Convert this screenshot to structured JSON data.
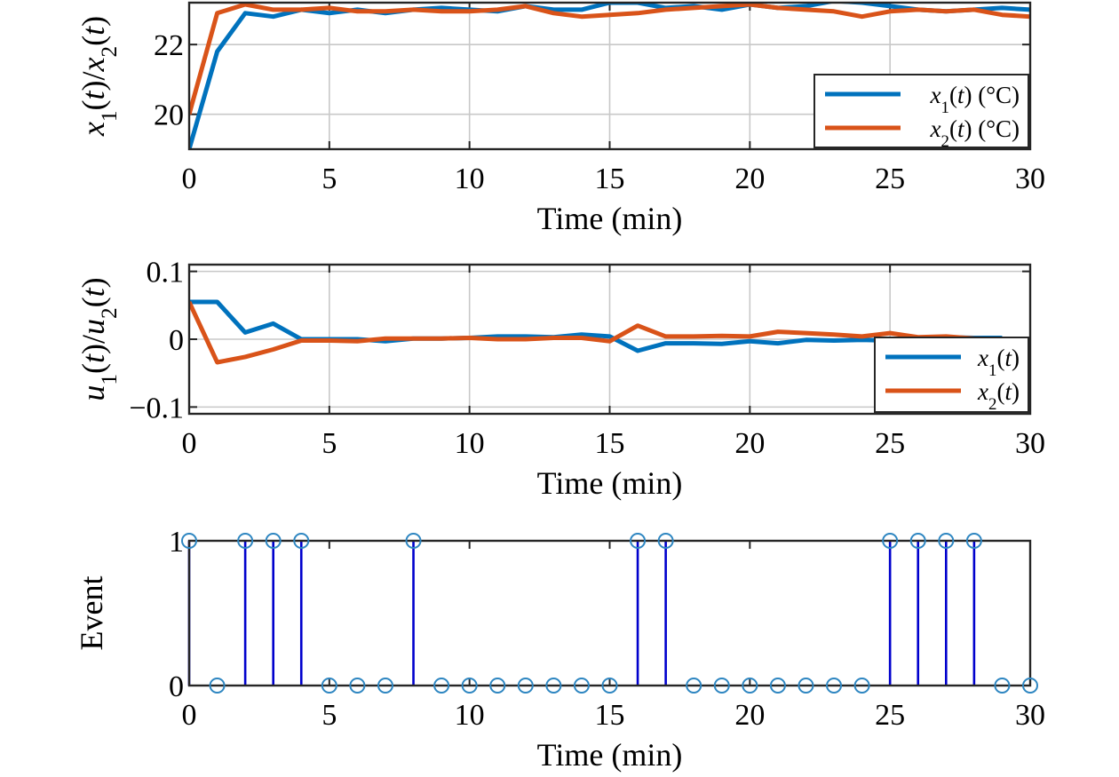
{
  "chart_data": [
    {
      "type": "line",
      "ylabel": "x1(t)/x2(t)",
      "ylabel_parts": [
        "x",
        "1",
        "(",
        "t",
        ")/",
        "x",
        "2",
        "(",
        "t",
        ")"
      ],
      "xlabel": "Time (min)",
      "xlim": [
        0,
        30
      ],
      "ylim": [
        19,
        23.2
      ],
      "xticks": [
        0,
        5,
        10,
        15,
        20,
        25,
        30
      ],
      "xtick_labels": [
        "0",
        "5",
        "10",
        "15",
        "20",
        "25",
        "30"
      ],
      "yticks": [
        20,
        22
      ],
      "ytick_labels": [
        "20",
        "22"
      ],
      "grid": true,
      "legend_position": "bottom-right",
      "x": [
        0,
        1,
        2,
        3,
        4,
        5,
        6,
        7,
        8,
        9,
        10,
        11,
        12,
        13,
        14,
        15,
        16,
        17,
        18,
        19,
        20,
        21,
        22,
        23,
        24,
        25,
        26,
        27,
        28,
        29,
        30
      ],
      "series": [
        {
          "name": "x1(t) (°C)",
          "legend_parts": [
            "x",
            "1",
            "(",
            "t",
            ") (°C)"
          ],
          "color": "#0072BD",
          "values": [
            19.0,
            21.8,
            22.9,
            22.8,
            23.0,
            22.9,
            23.0,
            22.9,
            23.0,
            23.05,
            23.0,
            22.95,
            23.1,
            23.0,
            23.0,
            23.2,
            23.2,
            23.05,
            23.1,
            23.0,
            23.15,
            23.05,
            23.1,
            23.25,
            23.2,
            23.1,
            23.0,
            22.95,
            23.0,
            23.05,
            23.0
          ]
        },
        {
          "name": "x2(t) (°C)",
          "legend_parts": [
            "x",
            "2",
            "(",
            "t",
            ") (°C)"
          ],
          "color": "#D95319",
          "values": [
            20.0,
            22.9,
            23.15,
            23.0,
            23.0,
            23.05,
            22.95,
            22.95,
            23.0,
            22.95,
            22.95,
            23.0,
            23.1,
            22.9,
            22.8,
            22.85,
            22.9,
            23.0,
            23.05,
            23.1,
            23.15,
            23.05,
            23.0,
            22.95,
            22.8,
            22.95,
            23.0,
            22.95,
            23.0,
            22.85,
            22.8
          ]
        }
      ]
    },
    {
      "type": "line",
      "ylabel": "u1(t)/u2(t)",
      "ylabel_parts": [
        "u",
        "1",
        "(",
        "t",
        ")/",
        "u",
        "2",
        "(",
        "t",
        ")"
      ],
      "xlabel": "Time (min)",
      "xlim": [
        0,
        30
      ],
      "ylim": [
        -0.11,
        0.11
      ],
      "xticks": [
        0,
        5,
        10,
        15,
        20,
        25,
        30
      ],
      "xtick_labels": [
        "0",
        "5",
        "10",
        "15",
        "20",
        "25",
        "30"
      ],
      "yticks": [
        0.1,
        0,
        -0.1
      ],
      "ytick_labels": [
        "0.1",
        "0",
        "−0.1"
      ],
      "grid": true,
      "legend_position": "bottom-right",
      "x": [
        0,
        1,
        2,
        3,
        4,
        5,
        6,
        7,
        8,
        9,
        10,
        11,
        12,
        13,
        14,
        15,
        16,
        17,
        18,
        19,
        20,
        21,
        22,
        23,
        24,
        25,
        26,
        27,
        28,
        29
      ],
      "series": [
        {
          "name": "x1(t)",
          "legend_parts": [
            "x",
            "1",
            "(",
            "t",
            ")"
          ],
          "color": "#0072BD",
          "values": [
            0.055,
            0.055,
            0.01,
            0.023,
            0.0,
            0.0,
            0.0,
            -0.003,
            0.001,
            0.001,
            0.002,
            0.004,
            0.004,
            0.003,
            0.007,
            0.004,
            -0.017,
            -0.006,
            -0.006,
            -0.007,
            -0.003,
            -0.006,
            -0.001,
            -0.002,
            -0.001,
            -0.002,
            0.001,
            0.003,
            0.002,
            0.002
          ]
        },
        {
          "name": "x2(t)",
          "legend_parts": [
            "x",
            "2",
            "(",
            "t",
            ")"
          ],
          "color": "#D95319",
          "values": [
            0.055,
            -0.034,
            -0.026,
            -0.015,
            -0.002,
            -0.002,
            -0.003,
            0.001,
            0.001,
            0.001,
            0.002,
            0.0,
            0.0,
            0.002,
            0.002,
            -0.003,
            0.02,
            0.004,
            0.004,
            0.005,
            0.004,
            0.011,
            0.009,
            0.007,
            0.004,
            0.009,
            0.003,
            0.004,
            0.001,
            0.0
          ]
        }
      ]
    },
    {
      "type": "stem",
      "ylabel": "Event",
      "xlabel": "Time (min)",
      "xlim": [
        0,
        30
      ],
      "ylim": [
        0,
        1
      ],
      "xticks": [
        0,
        5,
        10,
        15,
        20,
        25,
        30
      ],
      "xtick_labels": [
        "0",
        "5",
        "10",
        "15",
        "20",
        "25",
        "30"
      ],
      "yticks": [
        0,
        1
      ],
      "ytick_labels": [
        "0",
        "1"
      ],
      "grid": false,
      "stem_color": "#0000CD",
      "marker_color": "#2E86C1",
      "x": [
        0,
        1,
        2,
        3,
        4,
        5,
        6,
        7,
        8,
        9,
        10,
        11,
        12,
        13,
        14,
        15,
        16,
        17,
        18,
        19,
        20,
        21,
        22,
        23,
        24,
        25,
        26,
        27,
        28,
        29,
        30
      ],
      "values": [
        1,
        0,
        1,
        1,
        1,
        0,
        0,
        0,
        1,
        0,
        0,
        0,
        0,
        0,
        0,
        0,
        1,
        1,
        0,
        0,
        0,
        0,
        0,
        0,
        0,
        1,
        1,
        1,
        1,
        0,
        0
      ]
    }
  ]
}
